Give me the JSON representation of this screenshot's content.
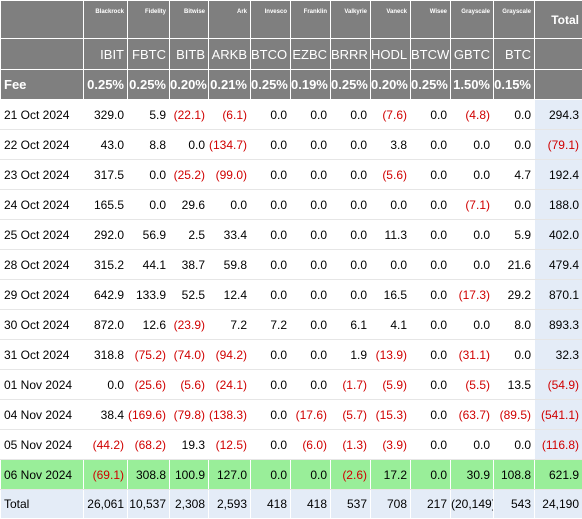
{
  "columns": [
    {
      "issuer": "Blackrock",
      "ticker": "IBIT",
      "fee": "0.25%"
    },
    {
      "issuer": "Fidelity",
      "ticker": "FBTC",
      "fee": "0.25%"
    },
    {
      "issuer": "Bitwise",
      "ticker": "BITB",
      "fee": "0.20%"
    },
    {
      "issuer": "Ark",
      "ticker": "ARKB",
      "fee": "0.21%"
    },
    {
      "issuer": "Invesco",
      "ticker": "BTCO",
      "fee": "0.25%"
    },
    {
      "issuer": "Franklin",
      "ticker": "EZBC",
      "fee": "0.19%"
    },
    {
      "issuer": "Valkyrie",
      "ticker": "BRRR",
      "fee": "0.25%"
    },
    {
      "issuer": "Vaneck",
      "ticker": "HODL",
      "fee": "0.20%"
    },
    {
      "issuer": "Wisee",
      "ticker": "BTCW",
      "fee": "0.25%"
    },
    {
      "issuer": "Grayscale",
      "ticker": "GBTC",
      "fee": "1.50%"
    },
    {
      "issuer": "Grayscale",
      "ticker": "BTC",
      "fee": "0.15%"
    }
  ],
  "total_header": "Total",
  "fee_label": "Fee",
  "rows": [
    {
      "date": "21 Oct 2024",
      "values": [
        "329.0",
        "5.9",
        "(22.1)",
        "(6.1)",
        "0.0",
        "0.0",
        "0.0",
        "(7.6)",
        "0.0",
        "(4.8)",
        "0.0"
      ],
      "total": "294.3"
    },
    {
      "date": "22 Oct 2024",
      "values": [
        "43.0",
        "8.8",
        "0.0",
        "(134.7)",
        "0.0",
        "0.0",
        "0.0",
        "3.8",
        "0.0",
        "0.0",
        "0.0"
      ],
      "total": "(79.1)"
    },
    {
      "date": "23 Oct 2024",
      "values": [
        "317.5",
        "0.0",
        "(25.2)",
        "(99.0)",
        "0.0",
        "0.0",
        "0.0",
        "(5.6)",
        "0.0",
        "0.0",
        "4.7"
      ],
      "total": "192.4"
    },
    {
      "date": "24 Oct 2024",
      "values": [
        "165.5",
        "0.0",
        "29.6",
        "0.0",
        "0.0",
        "0.0",
        "0.0",
        "0.0",
        "0.0",
        "(7.1)",
        "0.0"
      ],
      "total": "188.0"
    },
    {
      "date": "25 Oct 2024",
      "values": [
        "292.0",
        "56.9",
        "2.5",
        "33.4",
        "0.0",
        "0.0",
        "0.0",
        "11.3",
        "0.0",
        "0.0",
        "5.9"
      ],
      "total": "402.0"
    },
    {
      "date": "28 Oct 2024",
      "values": [
        "315.2",
        "44.1",
        "38.7",
        "59.8",
        "0.0",
        "0.0",
        "0.0",
        "0.0",
        "0.0",
        "0.0",
        "21.6"
      ],
      "total": "479.4"
    },
    {
      "date": "29 Oct 2024",
      "values": [
        "642.9",
        "133.9",
        "52.5",
        "12.4",
        "0.0",
        "0.0",
        "0.0",
        "16.5",
        "0.0",
        "(17.3)",
        "29.2"
      ],
      "total": "870.1"
    },
    {
      "date": "30 Oct 2024",
      "values": [
        "872.0",
        "12.6",
        "(23.9)",
        "7.2",
        "7.2",
        "0.0",
        "6.1",
        "4.1",
        "0.0",
        "0.0",
        "8.0"
      ],
      "total": "893.3"
    },
    {
      "date": "31 Oct 2024",
      "values": [
        "318.8",
        "(75.2)",
        "(74.0)",
        "(94.2)",
        "0.0",
        "0.0",
        "1.9",
        "(13.9)",
        "0.0",
        "(31.1)",
        "0.0"
      ],
      "total": "32.3"
    },
    {
      "date": "01 Nov 2024",
      "values": [
        "0.0",
        "(25.6)",
        "(5.6)",
        "(24.1)",
        "0.0",
        "0.0",
        "(1.7)",
        "(5.9)",
        "0.0",
        "(5.5)",
        "13.5"
      ],
      "total": "(54.9)"
    },
    {
      "date": "04 Nov 2024",
      "values": [
        "38.4",
        "(169.6)",
        "(79.8)",
        "(138.3)",
        "0.0",
        "(17.6)",
        "(5.7)",
        "(15.3)",
        "0.0",
        "(63.7)",
        "(89.5)"
      ],
      "total": "(541.1)"
    },
    {
      "date": "05 Nov 2024",
      "values": [
        "(44.2)",
        "(68.2)",
        "19.3",
        "(12.5)",
        "0.0",
        "(6.0)",
        "(1.3)",
        "(3.9)",
        "0.0",
        "0.0",
        "0.0"
      ],
      "total": "(116.8)"
    },
    {
      "date": "06 Nov 2024",
      "values": [
        "(69.1)",
        "308.8",
        "100.9",
        "127.0",
        "0.0",
        "0.0",
        "(2.6)",
        "17.2",
        "0.0",
        "30.9",
        "108.8"
      ],
      "total": "621.9",
      "highlighted": true
    }
  ],
  "totals": {
    "label": "Total",
    "values": [
      "26,061",
      "10,537",
      "2,308",
      "2,593",
      "418",
      "418",
      "537",
      "708",
      "217",
      "(20,149)",
      "543"
    ],
    "total": "24,190"
  },
  "colors": {
    "header_bg": "#7f7f7f",
    "header_text": "#ffffff",
    "negative": "#d00000",
    "total_col_bg": "#e4ecf7",
    "highlight_row": "#99ee99"
  }
}
